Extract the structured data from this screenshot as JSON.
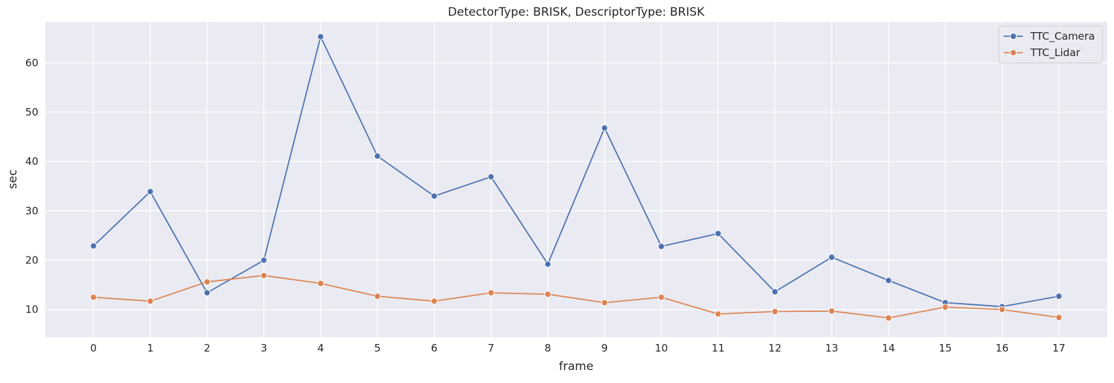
{
  "chart_data": {
    "type": "line",
    "title": "DetectorType: BRISK, DescriptorType: BRISK",
    "xlabel": "frame",
    "ylabel": "sec",
    "x": [
      0,
      1,
      2,
      3,
      4,
      5,
      6,
      7,
      8,
      9,
      10,
      11,
      12,
      13,
      14,
      15,
      16,
      17
    ],
    "xticks": [
      "0",
      "1",
      "2",
      "3",
      "4",
      "5",
      "6",
      "7",
      "8",
      "9",
      "10",
      "11",
      "12",
      "13",
      "14",
      "15",
      "16",
      "17"
    ],
    "yticks": [
      10,
      20,
      30,
      40,
      50,
      60
    ],
    "xlim": [
      -0.85,
      17.85
    ],
    "ylim": [
      4.4,
      68.3
    ],
    "grid": true,
    "legend_position": "top-right",
    "background_color": "#eaeaf2",
    "series": [
      {
        "name": "TTC_Camera",
        "color": "#4c72b0",
        "values": [
          22.9,
          33.9,
          13.4,
          20.0,
          65.3,
          41.1,
          33.0,
          36.9,
          19.2,
          46.8,
          22.8,
          25.4,
          13.6,
          20.6,
          15.9,
          11.4,
          10.6,
          12.7
        ]
      },
      {
        "name": "TTC_Lidar",
        "color": "#dd8452",
        "values": [
          12.5,
          11.7,
          15.6,
          16.9,
          15.3,
          12.7,
          11.7,
          13.4,
          13.1,
          11.4,
          12.5,
          9.1,
          9.6,
          9.7,
          8.3,
          10.5,
          10.0,
          8.4
        ]
      }
    ]
  }
}
